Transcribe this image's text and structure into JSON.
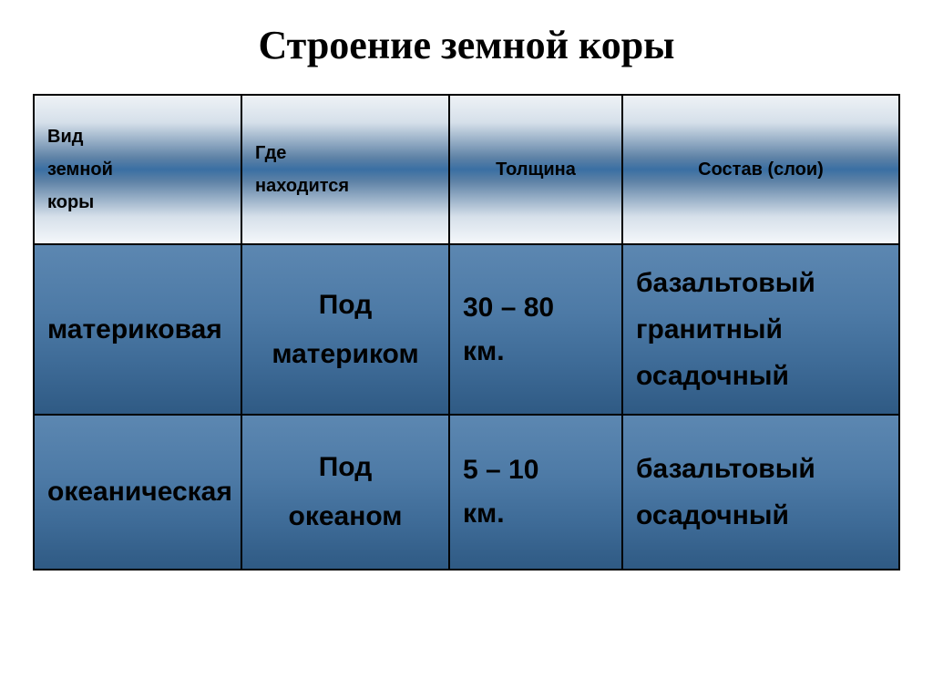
{
  "title": "Строение земной коры",
  "title_fontsize": 44,
  "header_fontsize": 20,
  "cell_fontsize": 30,
  "columns": {
    "c1": "Вид земной коры",
    "c2": "Где находится",
    "c3": "Толщина",
    "c4": "Состав (слои)"
  },
  "rows": [
    {
      "type": "материковая",
      "location": "Под материком",
      "thickness": "30 – 80 км.",
      "layers": "базальтовый гранитный осадочный"
    },
    {
      "type": "океаническая",
      "location": "Под океаном",
      "thickness": "5 – 10 км.",
      "layers": "базальтовый осадочный"
    }
  ],
  "colors": {
    "title_color": "#000000",
    "header_gradient_top": "#eef2f6",
    "header_gradient_mid": "#3a6fa3",
    "header_gradient_bottom": "#f4f7fa",
    "body_gradient_top": "#5c87b1",
    "body_gradient_bottom": "#2f5a84",
    "border_color": "#000000",
    "text_color": "#000000"
  },
  "col_widths_pct": [
    24,
    24,
    20,
    32
  ]
}
